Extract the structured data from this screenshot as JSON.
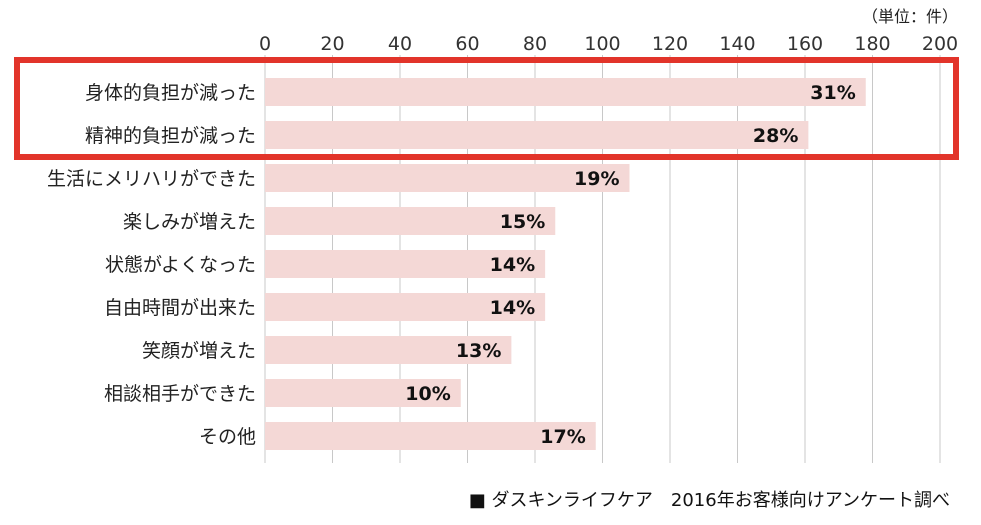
{
  "chart_data": {
    "type": "bar",
    "orientation": "horizontal",
    "unit_label": "（単位：件）",
    "categories": [
      "身体的負担が減った",
      "精神的負担が減った",
      "生活にメリハリができた",
      "楽しみが増えた",
      "状態がよくなった",
      "自由時間が出来た",
      "笑顔が増えた",
      "相談相手ができた",
      "その他"
    ],
    "values": [
      178,
      161,
      108,
      86,
      83,
      83,
      73,
      58,
      98
    ],
    "data_labels": [
      "31%",
      "28%",
      "19%",
      "15%",
      "14%",
      "14%",
      "13%",
      "10%",
      "17%"
    ],
    "xlim": [
      0,
      200
    ],
    "xticks": [
      0,
      20,
      40,
      60,
      80,
      100,
      120,
      140,
      160,
      180,
      200
    ],
    "grid": true,
    "highlight_categories": [
      "身体的負担が減った",
      "精神的負担が減った"
    ],
    "source": "■ ダスキンライフケア　2016年お客様向けアンケート調べ",
    "colors": {
      "bar": "#f4d8d6",
      "highlight_border": "#e2342a",
      "grid": "#c8c8c8"
    }
  }
}
